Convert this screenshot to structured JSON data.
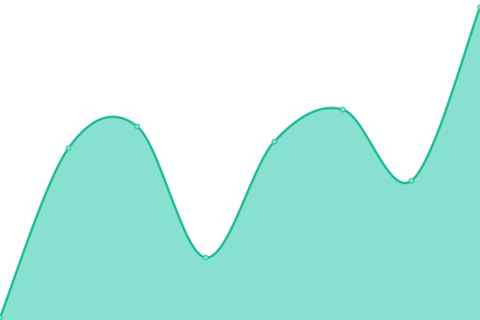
{
  "chart_data": {
    "type": "area",
    "title": "",
    "xlabel": "",
    "ylabel": "",
    "x": [
      0,
      1,
      2,
      3,
      4,
      5,
      6,
      7
    ],
    "values": [
      3,
      215,
      242,
      78,
      223,
      263,
      174,
      391
    ],
    "ylim": [
      0,
      400
    ],
    "grid": false,
    "legend": "none",
    "curve": "smooth",
    "colors": {
      "line": "#1fbc96",
      "fill": "#88e0d0",
      "point_fill": "#88e0d0"
    }
  }
}
